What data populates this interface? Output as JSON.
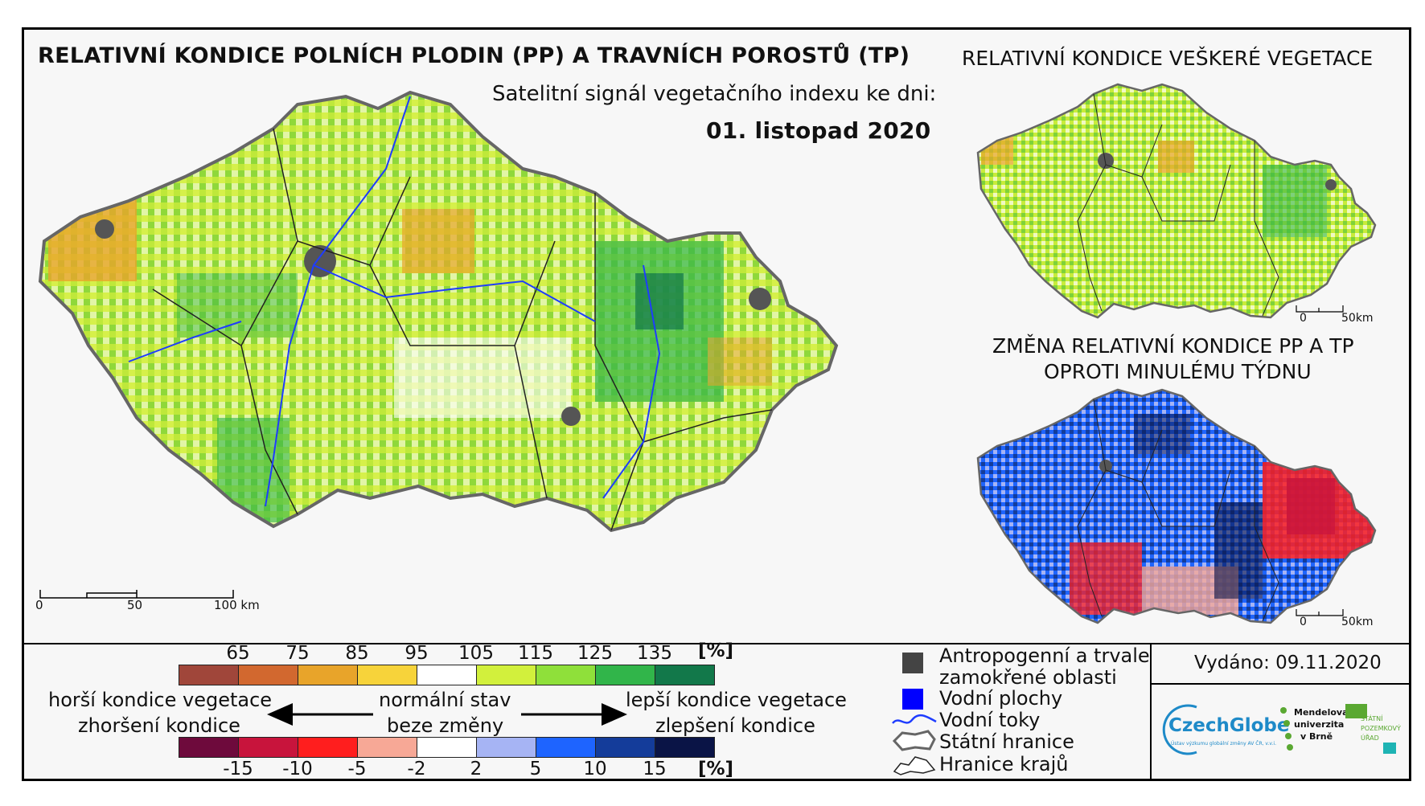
{
  "main_map": {
    "title": "RELATIVNÍ KONDICE POLNÍCH PLODIN (PP) A TRAVNÍCH POROSTŮ (TP)",
    "subtitle": "Satelitní signál vegetačního indexu ke dni:",
    "date": "01. listopad 2020",
    "scale_ticks": [
      "0",
      "50",
      "100 km"
    ]
  },
  "veg_map": {
    "title": "RELATIVNÍ KONDICE VEŠKERÉ VEGETACE",
    "scale_ticks": [
      "0",
      "50km"
    ]
  },
  "change_map": {
    "title_line1": "ZMĚNA RELATIVNÍ KONDICE PP A TP",
    "title_line2": "OPROTI MINULÉMU TÝDNU",
    "scale_ticks": [
      "0",
      "50km"
    ]
  },
  "condition_scale": {
    "ticks": [
      "65",
      "75",
      "85",
      "95",
      "105",
      "115",
      "125",
      "135"
    ],
    "unit": "[%]",
    "colors": [
      "#a0463a",
      "#d2682f",
      "#e8a42a",
      "#f7d33a",
      "#ffffff",
      "#d2f03c",
      "#8fe03a",
      "#31b54a",
      "#12784a"
    ]
  },
  "change_scale": {
    "ticks": [
      "-15",
      "-10",
      "-5",
      "-2",
      "2",
      "5",
      "10",
      "15"
    ],
    "unit": "[%]",
    "colors": [
      "#6e0a3c",
      "#c8143c",
      "#ff1e1e",
      "#f7a896",
      "#ffffff",
      "#a6b4f4",
      "#1e64ff",
      "#143c9a",
      "#0a1446"
    ]
  },
  "arrows": {
    "left_top": "horší kondice vegetace",
    "left_bottom": "zhoršení kondice",
    "middle_top": "normální stav",
    "middle_bottom": "beze změny",
    "right_top": "lepší kondice vegetace",
    "right_bottom": "zlepšení kondice"
  },
  "symbols": {
    "anthropogenic_line1": "Antropogenní a trvale",
    "anthropogenic_line2": "zamokřené oblasti",
    "water": "Vodní plochy",
    "rivers": "Vodní toky",
    "state_border": "Státní hranice",
    "region_border": "Hranice krajů"
  },
  "issued": "Vydáno: 09.11.2020",
  "logos": {
    "czechglobe": "CzechGlobe",
    "czechglobe_sub": "Ústav výzkumu globální změny AV ČR, v.v.i.",
    "mendel_1": "Mendelova",
    "mendel_2": "univerzita",
    "mendel_3": "v Brně",
    "spu_1": "STÁTNÍ",
    "spu_2": "POZEMKOVÝ",
    "spu_3": "ÚŘAD"
  }
}
